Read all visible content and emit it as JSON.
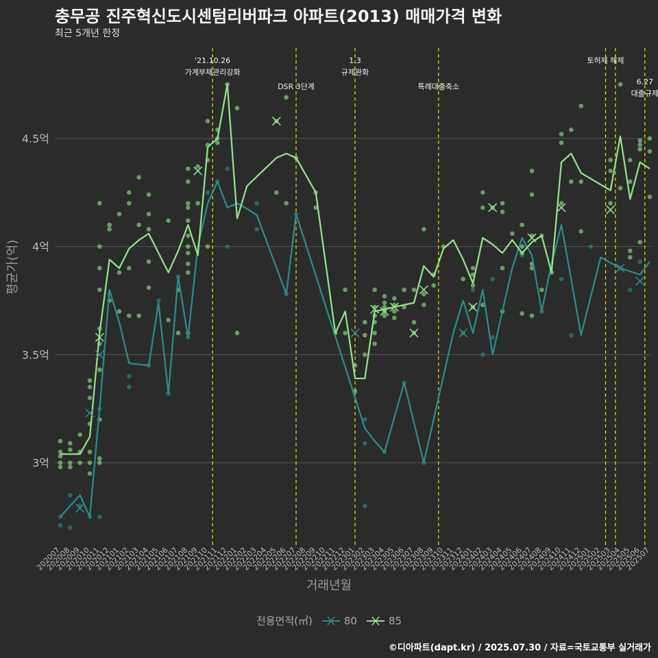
{
  "title": "충무공 진주혁신도시센텀리버파크 아파트(2013) 매매가격 변화",
  "subtitle": "최근 5개년 한정",
  "caption": "©디아파트(dapt.kr) / 2025.07.30 / 자료=국토교통부 실거래가",
  "colors": {
    "background": "#2b2b2b",
    "grid": "#555555",
    "series80": "#2a8c8c",
    "series85": "#8fe388",
    "event": "#e6e600"
  },
  "chart_data": {
    "type": "line",
    "xlabel": "거래년월",
    "ylabel": "평균가(억)",
    "ylim": [
      2.62,
      4.95
    ],
    "y_ticks": [
      3,
      3.5,
      4,
      4.5
    ],
    "y_tick_labels": [
      "3억",
      "3.5억",
      "4억",
      "4.5억"
    ],
    "legend_title": "전용면적(㎡)",
    "legend_position": "bottom",
    "grid": true,
    "x": [
      "202007",
      "202008",
      "202009",
      "202010",
      "202011",
      "202012",
      "202101",
      "202102",
      "202103",
      "202104",
      "202105",
      "202106",
      "202107",
      "202108",
      "202109",
      "202110",
      "202111",
      "202112",
      "202201",
      "202202",
      "202203",
      "202204",
      "202205",
      "202206",
      "202207",
      "202208",
      "202209",
      "202210",
      "202211",
      "202212",
      "202301",
      "202302",
      "202303",
      "202304",
      "202305",
      "202306",
      "202307",
      "202308",
      "202309",
      "202310",
      "202311",
      "202312",
      "202401",
      "202402",
      "202403",
      "202404",
      "202405",
      "202406",
      "202407",
      "202408",
      "202409",
      "202410",
      "202411",
      "202412",
      "202501",
      "202502",
      "202503",
      "202504",
      "202505",
      "202506",
      "202507"
    ],
    "series": [
      {
        "name": "80",
        "values": [
          2.75,
          2.8,
          2.85,
          2.75,
          3.25,
          3.8,
          3.65,
          3.46,
          3.455,
          3.45,
          3.74,
          3.32,
          3.86,
          3.58,
          4.0,
          4.2,
          4.3,
          4.18,
          4.2,
          4.175,
          4.145,
          null,
          null,
          3.78,
          4.15,
          null,
          null,
          null,
          null,
          null,
          null,
          3.16,
          3.1,
          3.05,
          null,
          3.37,
          null,
          3.0,
          null,
          null,
          3.6,
          3.75,
          3.6,
          3.8,
          3.5,
          3.7,
          3.9,
          4.04,
          3.96,
          3.7,
          3.92,
          4.1,
          3.85,
          3.59,
          null,
          3.95,
          null,
          3.9,
          null,
          3.87,
          3.93
        ]
      },
      {
        "name": "85",
        "values": [
          3.04,
          3.04,
          3.04,
          3.12,
          3.6,
          3.94,
          3.9,
          3.99,
          4.03,
          4.06,
          3.97,
          3.88,
          3.98,
          4.1,
          3.96,
          4.46,
          4.5,
          4.75,
          4.13,
          4.28,
          null,
          null,
          4.41,
          4.43,
          4.41,
          null,
          4.25,
          null,
          3.6,
          3.7,
          3.39,
          3.39,
          3.7,
          3.71,
          3.72,
          3.73,
          3.74,
          3.91,
          3.86,
          3.99,
          4.03,
          3.94,
          3.83,
          4.04,
          4.01,
          3.97,
          4.03,
          3.97,
          4.02,
          4.05,
          3.88,
          4.39,
          4.43,
          4.34,
          null,
          null,
          4.26,
          4.51,
          4.22,
          4.39,
          4.36
        ]
      }
    ],
    "scatter_points": [
      {
        "series": "80",
        "points": [
          [
            "202007",
            2.71
          ],
          [
            "202007",
            2.75
          ],
          [
            "202008",
            2.7
          ],
          [
            "202008",
            2.85
          ],
          [
            "202009",
            2.8
          ],
          [
            "202010",
            2.75
          ],
          [
            "202011",
            2.75
          ],
          [
            "202011",
            3.25
          ],
          [
            "202012",
            3.78
          ],
          [
            "202102",
            3.4
          ],
          [
            "202102",
            3.35
          ],
          [
            "202104",
            3.45
          ],
          [
            "202105",
            3.75
          ],
          [
            "202106",
            3.32
          ],
          [
            "202107",
            3.86
          ],
          [
            "202108",
            3.58
          ],
          [
            "202110",
            4.25
          ],
          [
            "202111",
            4.3
          ],
          [
            "202112",
            4.0
          ],
          [
            "202112",
            4.36
          ],
          [
            "202203",
            4.2
          ],
          [
            "202203",
            4.08
          ],
          [
            "202206",
            3.78
          ],
          [
            "202207",
            4.15
          ],
          [
            "202302",
            3.2
          ],
          [
            "202302",
            3.09
          ],
          [
            "202302",
            2.8
          ],
          [
            "202304",
            3.05
          ],
          [
            "202306",
            3.37
          ],
          [
            "202308",
            3.0
          ],
          [
            "202312",
            3.6
          ],
          [
            "202401",
            3.8
          ],
          [
            "202402",
            3.5
          ],
          [
            "202403",
            3.85
          ],
          [
            "202403",
            3.58
          ],
          [
            "202406",
            3.96
          ],
          [
            "202408",
            3.7
          ],
          [
            "202410",
            3.85
          ],
          [
            "202411",
            3.59
          ],
          [
            "202501",
            4.0
          ],
          [
            "202504",
            3.9
          ],
          [
            "202505",
            3.8
          ],
          [
            "202506",
            3.93
          ]
        ]
      },
      {
        "series": "85",
        "points": [
          [
            "202007",
            2.98
          ],
          [
            "202007",
            3.0
          ],
          [
            "202007",
            3.03
          ],
          [
            "202007",
            3.05
          ],
          [
            "202007",
            3.1
          ],
          [
            "202008",
            3.09
          ],
          [
            "202008",
            3.06
          ],
          [
            "202008",
            3.0
          ],
          [
            "202008",
            2.98
          ],
          [
            "202009",
            3.0
          ],
          [
            "202009",
            3.05
          ],
          [
            "202009",
            3.13
          ],
          [
            "202010",
            2.95
          ],
          [
            "202010",
            3.0
          ],
          [
            "202010",
            3.05
          ],
          [
            "202010",
            3.18
          ],
          [
            "202010",
            3.3
          ],
          [
            "202010",
            3.35
          ],
          [
            "202010",
            3.38
          ],
          [
            "202011",
            3.0
          ],
          [
            "202011",
            3.02
          ],
          [
            "202011",
            3.2
          ],
          [
            "202011",
            3.43
          ],
          [
            "202011",
            3.55
          ],
          [
            "202011",
            3.62
          ],
          [
            "202011",
            3.8
          ],
          [
            "202011",
            3.9
          ],
          [
            "202011",
            4.0
          ],
          [
            "202011",
            4.2
          ],
          [
            "202012",
            3.75
          ],
          [
            "202012",
            4.08
          ],
          [
            "202012",
            4.1
          ],
          [
            "202101",
            3.7
          ],
          [
            "202101",
            3.88
          ],
          [
            "202101",
            4.15
          ],
          [
            "202102",
            3.68
          ],
          [
            "202102",
            3.9
          ],
          [
            "202102",
            4.2
          ],
          [
            "202102",
            4.25
          ],
          [
            "202103",
            3.68
          ],
          [
            "202103",
            4.1
          ],
          [
            "202103",
            4.32
          ],
          [
            "202104",
            3.81
          ],
          [
            "202104",
            3.93
          ],
          [
            "202104",
            4.08
          ],
          [
            "202104",
            4.15
          ],
          [
            "202104",
            4.24
          ],
          [
            "202106",
            3.66
          ],
          [
            "202106",
            4.12
          ],
          [
            "202107",
            3.6
          ],
          [
            "202107",
            3.8
          ],
          [
            "202108",
            3.6
          ],
          [
            "202108",
            3.88
          ],
          [
            "202108",
            3.92
          ],
          [
            "202108",
            3.97
          ],
          [
            "202108",
            4.0
          ],
          [
            "202108",
            4.05
          ],
          [
            "202108",
            4.12
          ],
          [
            "202108",
            4.18
          ],
          [
            "202108",
            4.2
          ],
          [
            "202108",
            4.3
          ],
          [
            "202108",
            4.36
          ],
          [
            "202109",
            4.2
          ],
          [
            "202109",
            4.37
          ],
          [
            "202110",
            4.0
          ],
          [
            "202110",
            4.4
          ],
          [
            "202110",
            4.47
          ],
          [
            "202110",
            4.58
          ],
          [
            "202111",
            4.48
          ],
          [
            "202111",
            4.5
          ],
          [
            "202111",
            4.54
          ],
          [
            "202112",
            4.75
          ],
          [
            "202201",
            3.6
          ],
          [
            "202201",
            4.64
          ],
          [
            "202205",
            4.25
          ],
          [
            "202205",
            4.58
          ],
          [
            "202206",
            4.2
          ],
          [
            "202206",
            4.69
          ],
          [
            "202207",
            4.41
          ],
          [
            "202209",
            4.18
          ],
          [
            "202209",
            4.25
          ],
          [
            "202211",
            3.6
          ],
          [
            "202212",
            3.6
          ],
          [
            "202212",
            3.8
          ],
          [
            "202301",
            3.33
          ],
          [
            "202301",
            3.45
          ],
          [
            "202302",
            3.5
          ],
          [
            "202302",
            3.59
          ],
          [
            "202302",
            3.65
          ],
          [
            "202303",
            3.55
          ],
          [
            "202303",
            3.6
          ],
          [
            "202303",
            3.65
          ],
          [
            "202303",
            3.68
          ],
          [
            "202303",
            3.72
          ],
          [
            "202303",
            3.8
          ],
          [
            "202304",
            3.68
          ],
          [
            "202304",
            3.7
          ],
          [
            "202304",
            3.72
          ],
          [
            "202304",
            3.74
          ],
          [
            "202304",
            3.77
          ],
          [
            "202305",
            3.67
          ],
          [
            "202305",
            3.7
          ],
          [
            "202305",
            3.73
          ],
          [
            "202305",
            3.76
          ],
          [
            "202306",
            3.72
          ],
          [
            "202306",
            3.8
          ],
          [
            "202307",
            3.6
          ],
          [
            "202307",
            3.65
          ],
          [
            "202307",
            3.8
          ],
          [
            "202308",
            3.73
          ],
          [
            "202308",
            3.78
          ],
          [
            "202308",
            4.08
          ],
          [
            "202309",
            3.82
          ],
          [
            "202309",
            3.87
          ],
          [
            "202310",
            4.0
          ],
          [
            "202312",
            3.85
          ],
          [
            "202401",
            3.82
          ],
          [
            "202401",
            3.87
          ],
          [
            "202401",
            3.9
          ],
          [
            "202401",
            3.72
          ],
          [
            "202402",
            3.73
          ],
          [
            "202402",
            4.18
          ],
          [
            "202402",
            4.25
          ],
          [
            "202403",
            4.18
          ],
          [
            "202404",
            3.7
          ],
          [
            "202404",
            3.9
          ],
          [
            "202404",
            4.16
          ],
          [
            "202404",
            4.2
          ],
          [
            "202405",
            4.06
          ],
          [
            "202406",
            3.69
          ],
          [
            "202406",
            3.97
          ],
          [
            "202406",
            4.0
          ],
          [
            "202406",
            4.1
          ],
          [
            "202407",
            3.68
          ],
          [
            "202407",
            3.9
          ],
          [
            "202407",
            3.92
          ],
          [
            "202407",
            4.05
          ],
          [
            "202407",
            4.24
          ],
          [
            "202407",
            4.35
          ],
          [
            "202408",
            3.8
          ],
          [
            "202408",
            4.05
          ],
          [
            "202409",
            3.88
          ],
          [
            "202410",
            4.2
          ],
          [
            "202410",
            4.48
          ],
          [
            "202410",
            4.52
          ],
          [
            "202411",
            4.3
          ],
          [
            "202411",
            4.54
          ],
          [
            "202412",
            4.07
          ],
          [
            "202412",
            4.3
          ],
          [
            "202412",
            4.65
          ],
          [
            "202503",
            4.2
          ],
          [
            "202503",
            4.35
          ],
          [
            "202503",
            4.4
          ],
          [
            "202504",
            4.27
          ],
          [
            "202504",
            4.75
          ],
          [
            "202505",
            3.95
          ],
          [
            "202505",
            3.98
          ],
          [
            "202505",
            4.3
          ],
          [
            "202505",
            4.4
          ],
          [
            "202506",
            4.02
          ],
          [
            "202506",
            4.45
          ],
          [
            "202506",
            4.47
          ],
          [
            "202506",
            4.49
          ],
          [
            "202507",
            4.23
          ],
          [
            "202507",
            4.44
          ],
          [
            "202507",
            4.5
          ]
        ]
      }
    ],
    "cross_markers": [
      {
        "series": "80",
        "points": [
          [
            "202009",
            2.79
          ],
          [
            "202010",
            3.23
          ],
          [
            "202011",
            3.5
          ],
          [
            "202301",
            3.6
          ],
          [
            "202312",
            3.6
          ],
          [
            "202504",
            3.9
          ],
          [
            "202506",
            3.84
          ]
        ]
      },
      {
        "series": "85",
        "points": [
          [
            "202011",
            3.58
          ],
          [
            "202109",
            4.35
          ],
          [
            "202205",
            4.58
          ],
          [
            "202303",
            3.71
          ],
          [
            "202304",
            3.7
          ],
          [
            "202305",
            3.72
          ],
          [
            "202307",
            3.6
          ],
          [
            "202308",
            3.8
          ],
          [
            "202401",
            3.72
          ],
          [
            "202403",
            4.18
          ],
          [
            "202407",
            4.04
          ],
          [
            "202410",
            4.18
          ],
          [
            "202503",
            4.17
          ]
        ]
      }
    ],
    "events": [
      {
        "x": 202110.5,
        "label": "'21.10.26\n가계부채관리강화",
        "row": 0
      },
      {
        "x": 202207,
        "label": "DSR 3단계",
        "row": 1
      },
      {
        "x": 202301,
        "label": "1.3\n규제완화",
        "row": 0
      },
      {
        "x": 202309.5,
        "label": "특례대출축소",
        "row": 1
      },
      {
        "x": 202502.5,
        "label": "토허제 해제",
        "row": 0
      },
      {
        "x": 202503.5,
        "label": "",
        "row": 0
      },
      {
        "x": 202506.5,
        "label": "6.27\n대출규제",
        "row": 2
      }
    ]
  }
}
